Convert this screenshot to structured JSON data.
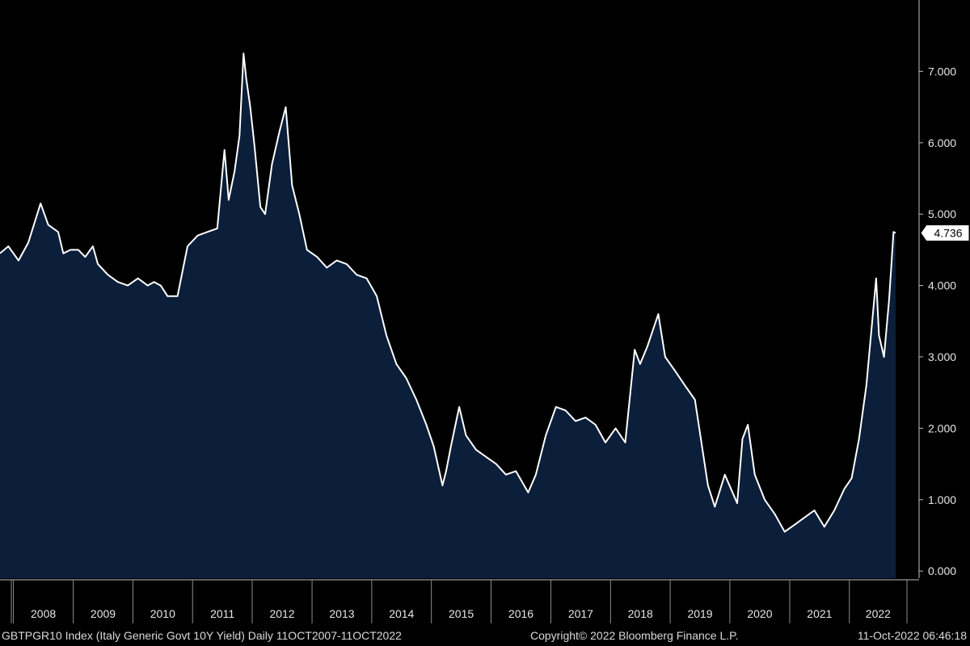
{
  "chart_data": {
    "type": "area",
    "title": "",
    "ylim": [
      -0.1,
      8.0
    ],
    "y_ticks": [
      "0.000",
      "1.000",
      "2.000",
      "3.000",
      "4.000",
      "5.000",
      "6.000",
      "7.000"
    ],
    "x_ticks": [
      "2008",
      "2009",
      "2010",
      "2011",
      "2012",
      "2013",
      "2014",
      "2015",
      "2016",
      "2017",
      "2018",
      "2019",
      "2020",
      "2021",
      "2022"
    ],
    "last_value_label": "4.736",
    "series": [
      {
        "x": [
          "2007-10-11",
          "2007-12-01",
          "2008-02-01",
          "2008-04-01",
          "2008-06-15",
          "2008-08-01",
          "2008-10-01",
          "2008-11-01",
          "2008-12-15",
          "2009-02-01",
          "2009-03-15",
          "2009-05-01",
          "2009-06-01",
          "2009-08-01",
          "2009-10-01",
          "2009-12-01",
          "2010-02-01",
          "2010-04-01",
          "2010-05-10",
          "2010-06-20",
          "2010-08-01",
          "2010-10-01",
          "2010-12-01",
          "2011-02-01",
          "2011-04-01",
          "2011-06-01",
          "2011-07-15",
          "2011-08-10",
          "2011-09-15",
          "2011-10-15",
          "2011-11-09",
          "2011-11-25",
          "2011-12-20",
          "2012-01-15",
          "2012-02-20",
          "2012-03-20",
          "2012-05-01",
          "2012-06-15",
          "2012-07-24",
          "2012-09-01",
          "2012-10-15",
          "2012-12-01",
          "2013-02-01",
          "2013-04-01",
          "2013-06-01",
          "2013-08-01",
          "2013-10-01",
          "2013-12-01",
          "2014-02-01",
          "2014-04-01",
          "2014-06-01",
          "2014-08-01",
          "2014-10-01",
          "2014-12-01",
          "2015-01-15",
          "2015-03-10",
          "2015-04-01",
          "2015-05-01",
          "2015-06-20",
          "2015-08-01",
          "2015-10-01",
          "2015-12-01",
          "2016-02-01",
          "2016-04-01",
          "2016-06-01",
          "2016-08-15",
          "2016-10-01",
          "2016-12-01",
          "2017-02-01",
          "2017-04-01",
          "2017-06-01",
          "2017-08-01",
          "2017-10-01",
          "2017-12-01",
          "2018-02-01",
          "2018-04-01",
          "2018-05-29",
          "2018-07-01",
          "2018-08-15",
          "2018-10-20",
          "2018-12-01",
          "2019-02-01",
          "2019-04-01",
          "2019-06-01",
          "2019-08-20",
          "2019-10-01",
          "2019-12-01",
          "2020-02-15",
          "2020-03-18",
          "2020-04-20",
          "2020-06-01",
          "2020-08-01",
          "2020-10-01",
          "2020-12-01",
          "2021-02-01",
          "2021-04-01",
          "2021-06-01",
          "2021-08-01",
          "2021-10-01",
          "2021-12-01",
          "2022-01-15",
          "2022-03-01",
          "2022-04-15",
          "2022-06-14",
          "2022-07-01",
          "2022-08-01",
          "2022-09-01",
          "2022-09-28",
          "2022-10-11"
        ],
        "values": [
          4.45,
          4.55,
          4.35,
          4.6,
          5.15,
          4.85,
          4.75,
          4.45,
          4.5,
          4.5,
          4.4,
          4.55,
          4.3,
          4.15,
          4.05,
          4.0,
          4.1,
          4.0,
          4.05,
          4.0,
          3.85,
          3.85,
          4.55,
          4.7,
          4.75,
          4.8,
          5.9,
          5.2,
          5.6,
          6.1,
          7.25,
          6.9,
          6.5,
          5.95,
          5.1,
          5.0,
          5.7,
          6.15,
          6.5,
          5.4,
          5.0,
          4.5,
          4.4,
          4.25,
          4.35,
          4.3,
          4.15,
          4.1,
          3.85,
          3.3,
          2.9,
          2.7,
          2.4,
          2.05,
          1.75,
          1.2,
          1.4,
          1.75,
          2.3,
          1.9,
          1.7,
          1.6,
          1.5,
          1.35,
          1.4,
          1.1,
          1.35,
          1.9,
          2.3,
          2.25,
          2.1,
          2.15,
          2.05,
          1.8,
          2.0,
          1.8,
          3.1,
          2.9,
          3.15,
          3.6,
          3.0,
          2.8,
          2.6,
          2.4,
          1.2,
          0.9,
          1.35,
          0.95,
          1.85,
          2.05,
          1.35,
          1.0,
          0.8,
          0.55,
          0.65,
          0.75,
          0.85,
          0.62,
          0.85,
          1.15,
          1.3,
          1.85,
          2.6,
          4.1,
          3.3,
          3.0,
          3.8,
          4.75,
          4.736
        ]
      }
    ]
  },
  "footer": {
    "left": "GBTPGR10 Index (Italy Generic Govt 10Y Yield)  Daily 11OCT2007-11OCT2022",
    "center": "Copyright© 2022 Bloomberg Finance L.P.",
    "right": "11-Oct-2022 06:46:18"
  },
  "colors": {
    "background": "#000000",
    "area_fill": "#0b1e3a",
    "line": "#ffffff",
    "axis_text": "#e6e6e6"
  }
}
